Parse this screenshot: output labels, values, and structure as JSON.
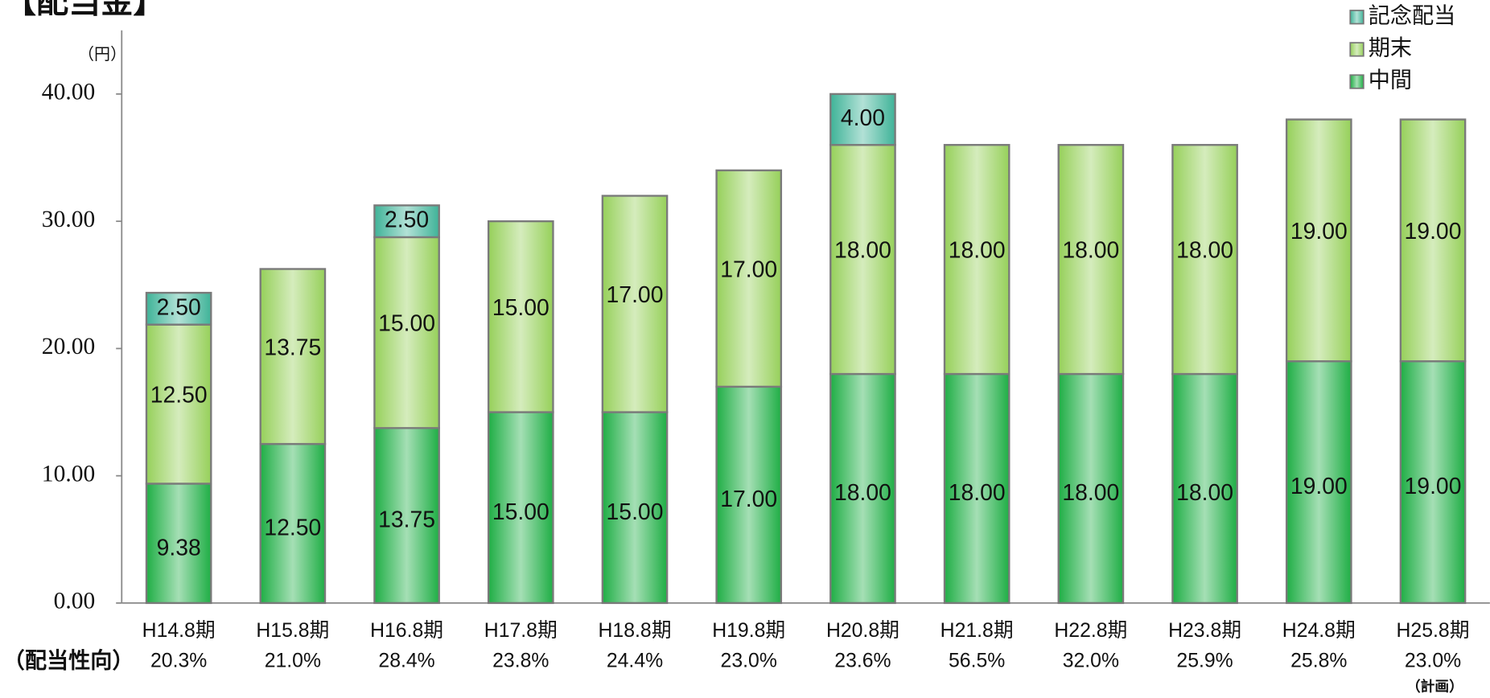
{
  "chart_data": {
    "type": "stacked_bar",
    "title": "【配当金】",
    "y_unit": "（円）",
    "categories": [
      "H14.8期",
      "H15.8期",
      "H16.8期",
      "H17.8期",
      "H18.8期",
      "H19.8期",
      "H20.8期",
      "H21.8期",
      "H22.8期",
      "H23.8期",
      "H24.8期",
      "H25.8期"
    ],
    "series": [
      {
        "name": "中間",
        "color": "#1fae45",
        "values": [
          9.38,
          12.5,
          13.75,
          15,
          15,
          17,
          18,
          18,
          18,
          18,
          19,
          19
        ],
        "value_labels": [
          "9.38",
          "12.50",
          "13.75",
          "15.00",
          "15.00",
          "17.00",
          "18.00",
          "18.00",
          "18.00",
          "18.00",
          "19.00",
          "19.00"
        ]
      },
      {
        "name": "期末",
        "color": "#96d05a",
        "values": [
          12.5,
          13.75,
          15,
          15,
          17,
          17,
          18,
          18,
          18,
          18,
          19,
          19
        ],
        "value_labels": [
          "12.50",
          "13.75",
          "15.00",
          "15.00",
          "17.00",
          "17.00",
          "18.00",
          "18.00",
          "18.00",
          "18.00",
          "19.00",
          "19.00"
        ]
      },
      {
        "name": "記念配当",
        "color": "#3fb398",
        "values": [
          2.5,
          null,
          2.5,
          null,
          null,
          null,
          4,
          null,
          null,
          null,
          null,
          null
        ],
        "value_labels": [
          "2.50",
          null,
          "2.50",
          null,
          null,
          null,
          "4.00",
          null,
          null,
          null,
          null,
          null
        ]
      }
    ],
    "ylim": [
      0,
      45
    ],
    "yticks": [
      {
        "value": 0,
        "label": "0.00"
      },
      {
        "value": 10,
        "label": "10.00"
      },
      {
        "value": 20,
        "label": "20.00"
      },
      {
        "value": 30,
        "label": "30.00"
      },
      {
        "value": 40,
        "label": "40.00"
      }
    ],
    "legend": "top-right",
    "payout_ratio": {
      "label": "（配当性向）",
      "values": [
        20.3,
        21.0,
        28.4,
        23.8,
        24.4,
        23.0,
        23.6,
        56.5,
        32.0,
        25.9,
        25.8,
        23.0
      ],
      "value_labels": [
        "20.3%",
        "21.0%",
        "28.4%",
        "23.8%",
        "24.4%",
        "23.0%",
        "23.6%",
        "56.5%",
        "32.0%",
        "25.9%",
        "25.8%",
        "23.0%"
      ]
    },
    "note": "（計画）"
  }
}
